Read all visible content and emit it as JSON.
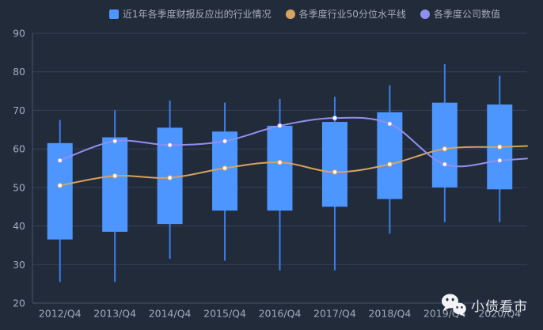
{
  "page": {
    "background": "#222b3a"
  },
  "legend": {
    "items": [
      {
        "label": "近1年各季度财报反应出的行业情况",
        "color": "#4d96ff",
        "shape": "square"
      },
      {
        "label": "各季度行业50分位水平线",
        "color": "#d6a360",
        "shape": "circle"
      },
      {
        "label": "各季度公司数值",
        "color": "#8f8ff0",
        "shape": "circle"
      }
    ]
  },
  "watermark": {
    "text": "小债看市"
  },
  "chart_data": {
    "type": "candlestick",
    "title": "",
    "categories": [
      "2012/Q4",
      "2013/Q4",
      "2014/Q4",
      "2015/Q4",
      "2016/Q4",
      "2017/Q4",
      "2018/Q4",
      "2019/Q4",
      "2020/Q4"
    ],
    "ylim": [
      20,
      90
    ],
    "y_ticks": [
      20,
      30,
      40,
      50,
      60,
      70,
      80,
      90
    ],
    "grid": true,
    "legend_position": "top",
    "series": [
      {
        "name": "近1年各季度财报反应出的行业情况",
        "type": "candlestick",
        "color": "#4d96ff",
        "whisker_color": "#3b7deb",
        "box_format": [
          "low",
          "box_bottom",
          "box_top",
          "high"
        ],
        "boxes": [
          [
            25.5,
            36.5,
            61.5,
            67.5
          ],
          [
            25.5,
            38.5,
            63.0,
            70.0
          ],
          [
            31.5,
            40.5,
            65.5,
            72.5
          ],
          [
            31.0,
            44.0,
            64.5,
            72.0
          ],
          [
            28.5,
            44.0,
            66.0,
            73.0
          ],
          [
            28.5,
            45.0,
            67.0,
            73.5
          ],
          [
            38.0,
            47.0,
            69.5,
            76.5
          ],
          [
            41.0,
            50.0,
            72.0,
            82.0
          ],
          [
            41.0,
            49.5,
            71.5,
            79.0
          ]
        ]
      },
      {
        "name": "各季度行业50分位水平线",
        "type": "line",
        "color": "#d6a360",
        "values": [
          50.5,
          53,
          52.5,
          55,
          56.5,
          54,
          56,
          60,
          60.5
        ]
      },
      {
        "name": "各季度公司数值",
        "type": "line",
        "color": "#8f8ff0",
        "values": [
          57,
          62,
          61,
          62,
          66,
          68,
          66.5,
          56,
          57
        ]
      }
    ],
    "axis": {
      "tick_color": "#a2abbd",
      "grid_color": "#364156",
      "axis_line_color": "#46536d"
    }
  }
}
